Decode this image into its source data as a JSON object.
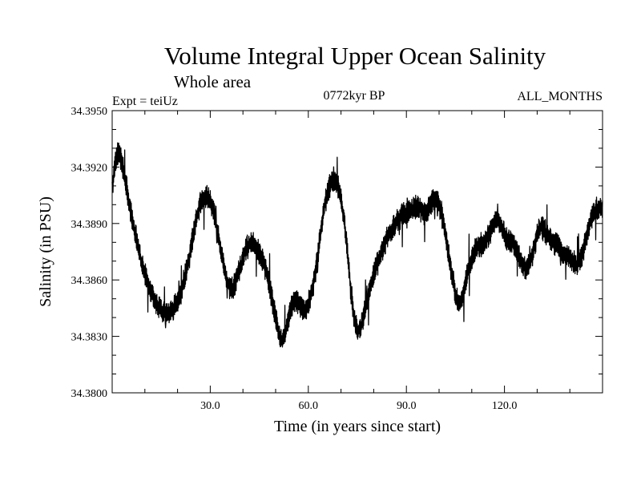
{
  "chart_data": {
    "type": "line",
    "title": "Volume Integral Upper Ocean Salinity",
    "subtitle": "Whole area",
    "experiment_label": "Expt = teiUz",
    "period_label": "0772kyr BP",
    "months_label": "ALL_MONTHS",
    "xlabel": "Time (in years since start)",
    "ylabel": "Salinity (in PSU)",
    "xlim": [
      0,
      150
    ],
    "ylim": [
      34.38,
      34.395
    ],
    "x_ticks": [
      30,
      60,
      90,
      120
    ],
    "x_tick_labels": [
      "30.0",
      "60.0",
      "90.0",
      "120.0"
    ],
    "y_ticks": [
      34.38,
      34.383,
      34.386,
      34.389,
      34.392,
      34.395
    ],
    "y_tick_labels": [
      "34.3800",
      "34.3830",
      "34.3860",
      "34.3890",
      "34.3920",
      "34.3950"
    ],
    "grid": false,
    "series": [
      {
        "name": "salinity",
        "color": "#000000",
        "trend_x": [
          0,
          1,
          2,
          3,
          4,
          5,
          6,
          7,
          8,
          9,
          10,
          11,
          12,
          13,
          14,
          15,
          16,
          17,
          18,
          19,
          20,
          21,
          22,
          23,
          24,
          25,
          26,
          27,
          28,
          29,
          30,
          31,
          32,
          33,
          34,
          35,
          36,
          37,
          38,
          39,
          40,
          41,
          42,
          43,
          44,
          45,
          46,
          47,
          48,
          49,
          50,
          51,
          52,
          53,
          54,
          55,
          56,
          57,
          58,
          59,
          60,
          61,
          62,
          63,
          64,
          65,
          66,
          67,
          68,
          69,
          70,
          71,
          72,
          73,
          74,
          75,
          76,
          77,
          78,
          79,
          80,
          81,
          82,
          83,
          84,
          85,
          86,
          87,
          88,
          89,
          90,
          91,
          92,
          93,
          94,
          95,
          96,
          97,
          98,
          99,
          100,
          101,
          102,
          103,
          104,
          105,
          106,
          107,
          108,
          109,
          110,
          111,
          112,
          113,
          114,
          115,
          116,
          117,
          118,
          119,
          120,
          121,
          122,
          123,
          124,
          125,
          126,
          127,
          128,
          129,
          130,
          131,
          132,
          133,
          134,
          135,
          136,
          137,
          138,
          139,
          140,
          141,
          142,
          143,
          144,
          145,
          146,
          147,
          148,
          149,
          150
        ],
        "trend_y": [
          34.3908,
          34.3924,
          34.3928,
          34.3922,
          34.3913,
          34.3903,
          34.3893,
          34.3885,
          34.3877,
          34.3869,
          34.3863,
          34.3858,
          34.3853,
          34.3849,
          34.3846,
          34.3844,
          34.3843,
          34.3843,
          34.3844,
          34.3846,
          34.3849,
          34.3853,
          34.386,
          34.3868,
          34.3877,
          34.3886,
          34.3895,
          34.39,
          34.3903,
          34.3904,
          34.3902,
          34.3897,
          34.3889,
          34.3879,
          34.3869,
          34.386,
          34.3855,
          34.3856,
          34.386,
          34.3866,
          34.3872,
          34.3877,
          34.3879,
          34.3879,
          34.3877,
          34.3874,
          34.387,
          34.3865,
          34.3858,
          34.3849,
          34.384,
          34.3832,
          34.3828,
          34.3833,
          34.384,
          34.3846,
          34.3849,
          34.3848,
          34.3845,
          34.3844,
          34.3847,
          34.3853,
          34.3862,
          34.3874,
          34.3888,
          34.39,
          34.3908,
          34.3912,
          34.3913,
          34.391,
          34.3903,
          34.3891,
          34.3874,
          34.3855,
          34.384,
          34.3833,
          34.3834,
          34.3841,
          34.3849,
          34.3857,
          34.3863,
          34.3868,
          34.3873,
          34.3878,
          34.3882,
          34.3885,
          34.3888,
          34.3891,
          34.3893,
          34.3895,
          34.3896,
          34.3897,
          34.3898,
          34.3899,
          34.3898,
          34.3896,
          34.3895,
          34.3898,
          34.3902,
          34.3903,
          34.39,
          34.3893,
          34.3884,
          34.3873,
          34.3862,
          34.3852,
          34.3847,
          34.385,
          34.3858,
          34.3866,
          34.3872,
          34.3876,
          34.3878,
          34.3879,
          34.388,
          34.3883,
          34.3887,
          34.3891,
          34.3892,
          34.3889,
          34.3884,
          34.3881,
          34.388,
          34.3879,
          34.3875,
          34.387,
          34.3867,
          34.3866,
          34.387,
          34.3877,
          34.3884,
          34.3888,
          34.3887,
          34.3884,
          34.3881,
          34.388,
          34.3879,
          34.3876,
          34.3874,
          34.3873,
          34.3872,
          34.387,
          34.3868,
          34.387,
          34.3875,
          34.3882,
          34.3889,
          34.3895,
          34.3898,
          34.3898,
          34.3897
        ],
        "samples_per_year": 12,
        "variability_psu": 0.0013
      }
    ]
  }
}
